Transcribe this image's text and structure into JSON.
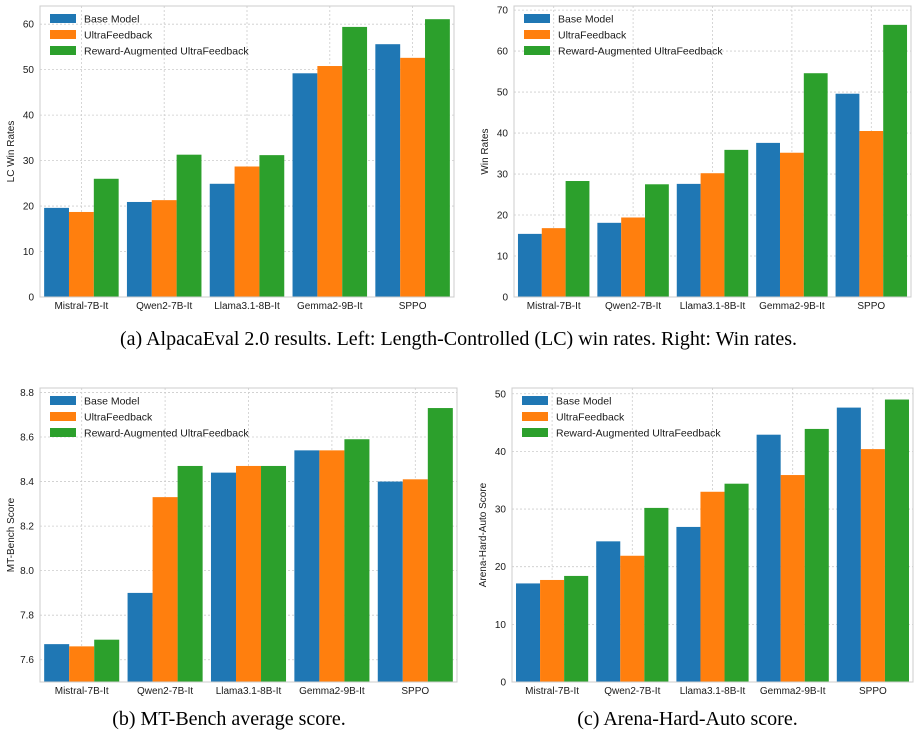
{
  "series_names": [
    "Base Model",
    "UltraFeedback",
    "Reward-Augmented UltraFeedback"
  ],
  "series_colors": [
    "#1f77b4",
    "#ff7f0e",
    "#2ca02c"
  ],
  "categories": [
    "Mistral-7B-It",
    "Qwen2-7B-It",
    "Llama3.1-8B-It",
    "Gemma2-9B-It",
    "SPPO"
  ],
  "captions": {
    "a": "(a)  AlpacaEval 2.0 results. Left: Length-Controlled (LC) win rates. Right: Win rates.",
    "b": "(b)  MT-Bench average score.",
    "c": "(c)  Arena-Hard-Auto score."
  },
  "chart_data": [
    {
      "type": "bar",
      "ylabel": "LC Win Rates",
      "ylim": [
        0,
        64
      ],
      "yticks": [
        0,
        10,
        20,
        30,
        40,
        50,
        60
      ],
      "ytick_labels": [
        "0",
        "10",
        "20",
        "30",
        "40",
        "50",
        "60"
      ],
      "categories": [
        "Mistral-7B-It",
        "Qwen2-7B-It",
        "Llama3.1-8B-It",
        "Gemma2-9B-It",
        "SPPO"
      ],
      "series": [
        {
          "name": "Base Model",
          "values": [
            19.6,
            20.9,
            24.9,
            49.2,
            55.6
          ]
        },
        {
          "name": "UltraFeedback",
          "values": [
            18.7,
            21.3,
            28.7,
            50.8,
            52.6
          ]
        },
        {
          "name": "Reward-Augmented UltraFeedback",
          "values": [
            26.0,
            31.3,
            31.2,
            59.4,
            61.1
          ]
        }
      ],
      "grid": true,
      "legend": "top-left"
    },
    {
      "type": "bar",
      "ylabel": "Win Rates",
      "ylim": [
        0,
        71
      ],
      "yticks": [
        0,
        10,
        20,
        30,
        40,
        50,
        60,
        70
      ],
      "ytick_labels": [
        "0",
        "10",
        "20",
        "30",
        "40",
        "50",
        "60",
        "70"
      ],
      "categories": [
        "Mistral-7B-It",
        "Qwen2-7B-It",
        "Llama3.1-8B-It",
        "Gemma2-9B-It",
        "SPPO"
      ],
      "series": [
        {
          "name": "Base Model",
          "values": [
            15.4,
            18.1,
            27.6,
            37.6,
            49.6
          ]
        },
        {
          "name": "UltraFeedback",
          "values": [
            16.8,
            19.4,
            30.2,
            35.2,
            40.5
          ]
        },
        {
          "name": "Reward-Augmented UltraFeedback",
          "values": [
            28.3,
            27.5,
            35.9,
            54.6,
            66.4
          ]
        }
      ],
      "grid": true,
      "legend": "top-left"
    },
    {
      "type": "bar",
      "ylabel": "MT-Bench Score",
      "ylim": [
        7.5,
        8.82
      ],
      "yticks": [
        7.6,
        7.8,
        8.0,
        8.2,
        8.4,
        8.6,
        8.8
      ],
      "ytick_labels": [
        "7.6",
        "7.8",
        "8.0",
        "8.2",
        "8.4",
        "8.6",
        "8.8"
      ],
      "categories": [
        "Mistral-7B-It",
        "Qwen2-7B-It",
        "Llama3.1-8B-It",
        "Gemma2-9B-It",
        "SPPO"
      ],
      "series": [
        {
          "name": "Base Model",
          "values": [
            7.67,
            7.9,
            8.44,
            8.54,
            8.4
          ]
        },
        {
          "name": "UltraFeedback",
          "values": [
            7.66,
            8.33,
            8.47,
            8.54,
            8.41
          ]
        },
        {
          "name": "Reward-Augmented UltraFeedback",
          "values": [
            7.69,
            8.47,
            8.47,
            8.59,
            8.73
          ]
        }
      ],
      "grid": true,
      "legend": "top-left"
    },
    {
      "type": "bar",
      "ylabel": "Arena-Hard-Auto Score",
      "ylim": [
        0,
        51
      ],
      "yticks": [
        0,
        10,
        20,
        30,
        40,
        50
      ],
      "ytick_labels": [
        "0",
        "10",
        "20",
        "30",
        "40",
        "50"
      ],
      "categories": [
        "Mistral-7B-It",
        "Qwen2-7B-It",
        "Llama3.1-8B-It",
        "Gemma2-9B-It",
        "SPPO"
      ],
      "series": [
        {
          "name": "Base Model",
          "values": [
            17.1,
            24.4,
            26.9,
            42.9,
            47.6
          ]
        },
        {
          "name": "UltraFeedback",
          "values": [
            17.7,
            21.9,
            33.0,
            35.9,
            40.4
          ]
        },
        {
          "name": "Reward-Augmented UltraFeedback",
          "values": [
            18.4,
            30.2,
            34.4,
            43.9,
            49.0
          ]
        }
      ],
      "grid": true,
      "legend": "top-left"
    }
  ]
}
